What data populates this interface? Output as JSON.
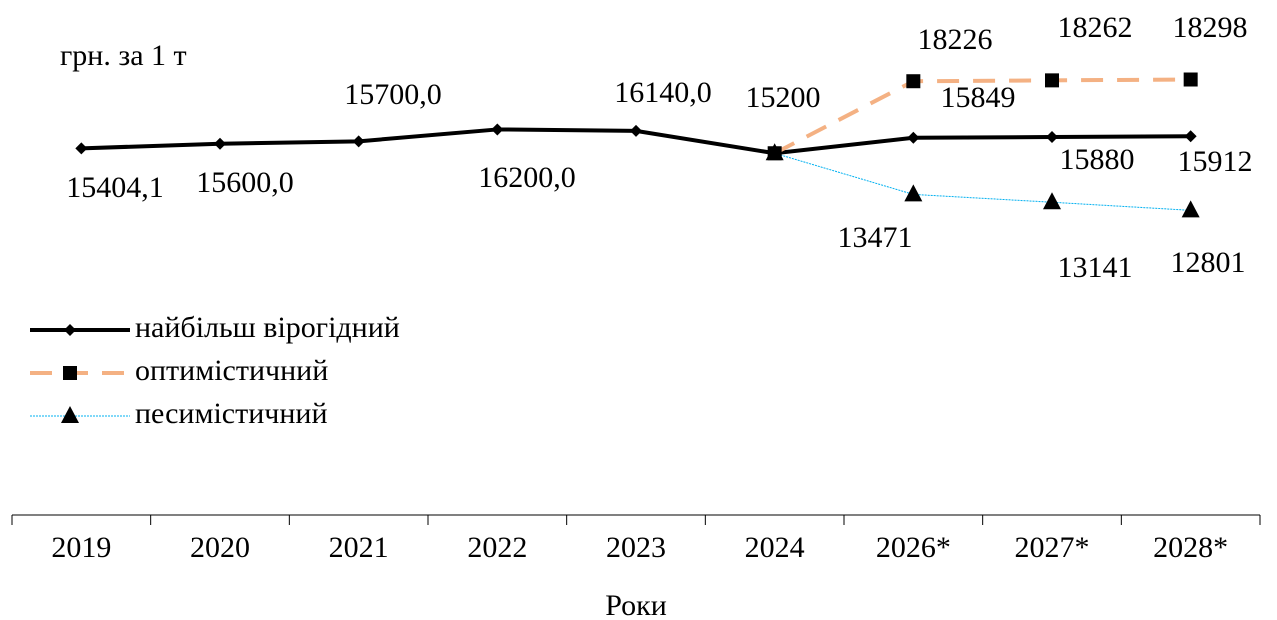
{
  "chart_data": {
    "type": "line",
    "title": "грн. за 1 т",
    "x_label": "Роки",
    "categories": [
      "2019",
      "2020",
      "2021",
      "2022",
      "2023",
      "2024",
      "2026*",
      "2027*",
      "2028*"
    ],
    "ylim": [
      0,
      20000
    ],
    "series": [
      {
        "name": "найбільш вірогідний",
        "color": "#000000",
        "marker": "diamond",
        "dash": "solid",
        "values": [
          15404.1,
          15600,
          15700,
          16200,
          16140,
          15200,
          15849,
          15880,
          15912
        ],
        "value_labels": [
          "15404,1",
          "15600,0",
          "15700,0",
          "16200,0",
          "16140,0",
          "15200",
          "15849",
          "15880",
          "15912"
        ]
      },
      {
        "name": "оптимістичний",
        "color": "#f4b183",
        "marker": "square",
        "dash": "dashed",
        "values": [
          null,
          null,
          null,
          null,
          null,
          15200,
          18226,
          18262,
          18298
        ]
      },
      {
        "name": "песимістичний",
        "color": "#00b0f0",
        "marker": "triangle",
        "dash": "thin",
        "values": [
          null,
          null,
          null,
          null,
          null,
          15200,
          13471,
          13141,
          12801
        ]
      }
    ]
  }
}
